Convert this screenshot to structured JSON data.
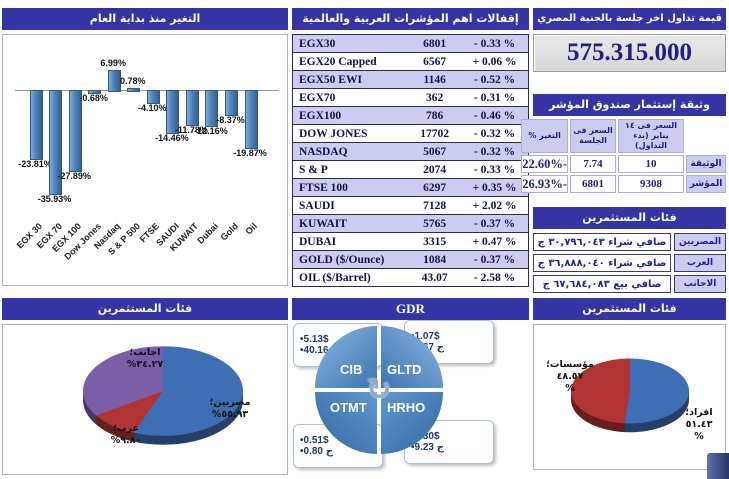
{
  "theme": {
    "header_bg": "#3434A4",
    "lavender": "#CCCCF0",
    "navy_text": "#202088",
    "bar_blue": "#4E81BD",
    "pie_blue": "#3E6FB5",
    "pie_red": "#B03434",
    "pie_purple": "#7A5EA8"
  },
  "chart_data": [
    {
      "type": "bar",
      "title": "التغير منذ بداية العام",
      "categories": [
        "EGX 30",
        "EGX 70",
        "EGX 100",
        "Dow Jones",
        "Nasdaq",
        "S & P 500",
        "FTSE",
        "SAUDI",
        "KUWAIT",
        "Dubai",
        "Gold",
        "Oil"
      ],
      "values": [
        -23.81,
        -35.93,
        -27.89,
        -0.68,
        6.99,
        0.78,
        -4.1,
        -14.46,
        -11.78,
        -12.16,
        -8.37,
        -19.87
      ],
      "label_suffix": "%",
      "ylim": [
        -40,
        10
      ],
      "grid": false,
      "legend": false
    },
    {
      "type": "pie",
      "title": "فئات المستثمرين",
      "labels": [
        "مصريين؛",
        "عرب؛",
        "اجانب؛"
      ],
      "values": [
        55.93,
        9.8,
        34.27
      ],
      "value_labels": [
        "٥٥.٩٣%",
        "٩.٨٠%",
        "٣٤.٢٧%"
      ],
      "colors": [
        "#3E6FB5",
        "#B03434",
        "#7A5EA8"
      ]
    },
    {
      "type": "pie",
      "title": "فئات المستثمرين",
      "labels": [
        "افراد؛",
        "مؤسسات؛"
      ],
      "values": [
        51.43,
        48.57
      ],
      "value_labels": [
        "٥١.٤٣\n%",
        "٤٨.٥٧\n%"
      ],
      "colors": [
        "#3E6FB5",
        "#B03434"
      ]
    }
  ],
  "year_change": {
    "title": "التغير منذ بداية العام"
  },
  "index_closings": {
    "title": "إقفالات اهم المؤشرات العربية والعالمية",
    "rows": [
      {
        "name": "EGX30",
        "value": "6801",
        "change": "- 0.33 %"
      },
      {
        "name": "EGX20 Capped",
        "value": "6567",
        "change": "+ 0.06 %"
      },
      {
        "name": "EGX50 EWI",
        "value": "1146",
        "change": "- 0.52 %"
      },
      {
        "name": "EGX70",
        "value": "362",
        "change": "- 0.31 %"
      },
      {
        "name": "EGX100",
        "value": "786",
        "change": "- 0.46 %"
      },
      {
        "name": "DOW JONES",
        "value": "17702",
        "change": "- 0.32 %"
      },
      {
        "name": "NASDAQ",
        "value": "5067",
        "change": "- 0.32 %"
      },
      {
        "name": "S & P",
        "value": "2074",
        "change": "- 0.33 %"
      },
      {
        "name": "FTSE 100",
        "value": "6297",
        "change": "+ 0.35 %"
      },
      {
        "name": "SAUDI",
        "value": "7128",
        "change": "+ 2.02 %"
      },
      {
        "name": "KUWAIT",
        "value": "5765",
        "change": "- 0.37 %"
      },
      {
        "name": "DUBAI",
        "value": "3315",
        "change": "+ 0.47 %"
      },
      {
        "name": "GOLD ($/Ounce)",
        "value": "1084",
        "change": "- 0.37 %"
      },
      {
        "name": "OIL ($/Barrel)",
        "value": "43.07",
        "change": "- 2.58 %"
      }
    ]
  },
  "trading_value": {
    "title": "قيمة تداول اخر جلسة بالجنية المصري",
    "value": "575.315.000"
  },
  "fund_doc": {
    "title": "وثيقة إستثمار صندوق المؤشر",
    "col_start": "السعر فى ١٤ يناير (بدء التداول)",
    "col_session": "السعر فى الجلسة",
    "col_change": "التغير %",
    "rows": [
      {
        "label": "الوثيقة",
        "start": "10",
        "session": "7.74",
        "change": "-22.60%"
      },
      {
        "label": "المؤشر",
        "start": "9308",
        "session": "6801",
        "change": "-26.93%"
      }
    ]
  },
  "investor_net": {
    "title": "فئات المستثمرين",
    "rows": [
      {
        "label": "المصريين",
        "value": "صافي شراء ٣٠,٧٩٦,٠٤٣ ج"
      },
      {
        "label": "العرب",
        "value": "صافي شراء ٣٦,٨٨٨,٠٤٠ ج"
      },
      {
        "label": "الاجانب",
        "value": "صافي بيع ٦٧,٦٨٤,٠٨٣ ج"
      }
    ]
  },
  "investor_pie": {
    "title": "فئات المستثمرين"
  },
  "gdr": {
    "title": "GDR",
    "quadrants": [
      {
        "code": "CIB",
        "usd": "•5.13$",
        "egp": "•40.16 ج"
      },
      {
        "code": "GLTD",
        "usd": "•1.07$",
        "egp": "•1.67 ج"
      },
      {
        "code": "OTMT",
        "usd": "•0.51$",
        "egp": "•0.80 ج"
      },
      {
        "code": "HRHO",
        "usd": "•2.30$",
        "egp": "•9.23 ج"
      }
    ]
  },
  "investor_type_pie": {
    "title": "فئات المستثمرين"
  }
}
